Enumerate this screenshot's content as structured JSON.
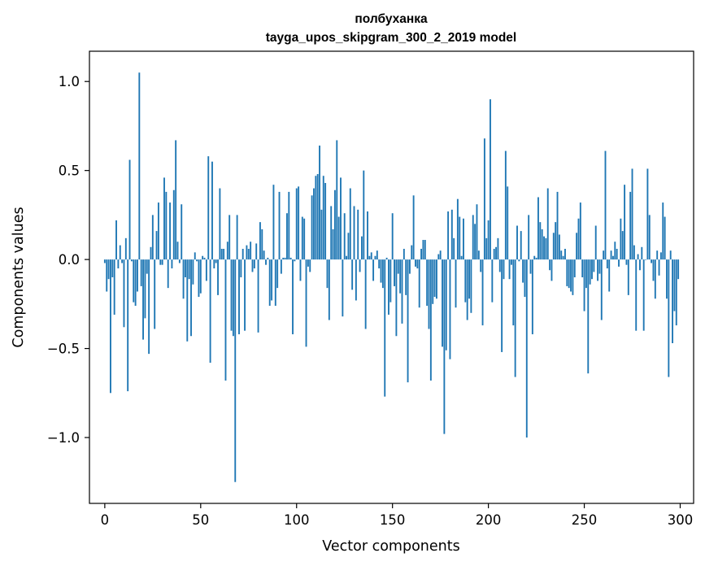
{
  "chart_data": {
    "type": "bar",
    "title": "полбуханка",
    "subtitle": "tayga_upos_skipgram_300_2_2019 model",
    "xlabel": "Vector components",
    "ylabel": "Components values",
    "xlim": [
      -8,
      307
    ],
    "ylim": [
      -1.37,
      1.17
    ],
    "xticks": [
      0,
      50,
      100,
      150,
      200,
      250,
      300
    ],
    "yticks": [
      -1.0,
      -0.5,
      0.0,
      0.5,
      1.0
    ],
    "ytick_labels": [
      "−1.0",
      "−0.5",
      "0.0",
      "0.5",
      "1.0"
    ],
    "bar_color": "#1f77b4",
    "grid": false,
    "legend": "none",
    "values": [
      -0.02,
      -0.18,
      -0.11,
      -0.75,
      -0.1,
      -0.31,
      0.22,
      -0.05,
      0.08,
      -0.02,
      -0.38,
      0.12,
      -0.74,
      0.56,
      -0.01,
      -0.24,
      -0.26,
      -0.18,
      1.05,
      -0.15,
      -0.45,
      -0.33,
      -0.08,
      -0.53,
      0.07,
      0.25,
      -0.39,
      0.16,
      0.32,
      -0.03,
      -0.03,
      0.46,
      0.38,
      -0.16,
      0.32,
      -0.05,
      0.39,
      0.67,
      0.1,
      -0.02,
      0.31,
      -0.22,
      -0.1,
      -0.46,
      -0.11,
      -0.43,
      -0.14,
      0.04,
      -0.01,
      -0.21,
      -0.19,
      0.02,
      0.01,
      -0.12,
      0.58,
      -0.58,
      0.55,
      -0.05,
      -0.02,
      -0.2,
      0.4,
      0.06,
      0.06,
      -0.68,
      0.1,
      0.25,
      -0.4,
      -0.43,
      -1.25,
      0.25,
      -0.42,
      -0.1,
      0.06,
      -0.4,
      0.08,
      0.06,
      0.1,
      -0.07,
      -0.05,
      0.09,
      -0.41,
      0.21,
      0.17,
      0.05,
      -0.03,
      0.01,
      -0.26,
      -0.23,
      0.42,
      -0.26,
      -0.16,
      0.38,
      -0.08,
      0.01,
      0.01,
      0.26,
      0.38,
      0.01,
      -0.42,
      -0.01,
      0.4,
      0.41,
      -0.12,
      0.24,
      0.23,
      -0.49,
      -0.04,
      -0.07,
      0.36,
      0.4,
      0.47,
      0.48,
      0.64,
      0.28,
      0.47,
      0.43,
      -0.16,
      -0.34,
      0.3,
      0.17,
      0.39,
      0.67,
      0.24,
      0.46,
      -0.32,
      0.26,
      0.02,
      0.15,
      0.4,
      -0.17,
      0.3,
      -0.23,
      0.28,
      -0.07,
      0.13,
      0.5,
      -0.39,
      0.27,
      0.02,
      0.04,
      -0.12,
      0.02,
      0.05,
      -0.05,
      -0.13,
      -0.16,
      -0.77,
      0.01,
      -0.31,
      -0.24,
      0.26,
      -0.15,
      -0.43,
      -0.08,
      -0.19,
      -0.36,
      0.06,
      -0.2,
      -0.69,
      -0.08,
      0.08,
      0.36,
      -0.04,
      -0.05,
      -0.27,
      0.06,
      0.11,
      0.11,
      -0.26,
      -0.39,
      -0.68,
      -0.25,
      -0.21,
      -0.22,
      0.03,
      0.05,
      -0.49,
      -0.98,
      -0.51,
      0.27,
      -0.56,
      0.28,
      0.12,
      -0.27,
      0.34,
      0.24,
      0.02,
      0.23,
      -0.24,
      -0.34,
      -0.22,
      -0.3,
      0.25,
      0.2,
      0.31,
      0.05,
      -0.07,
      -0.37,
      0.68,
      0.12,
      0.22,
      0.9,
      -0.24,
      0.06,
      0.07,
      0.12,
      -0.07,
      -0.52,
      -0.11,
      0.61,
      0.41,
      -0.11,
      -0.03,
      -0.37,
      -0.66,
      0.19,
      -0.01,
      0.16,
      -0.13,
      -0.21,
      -1.0,
      0.25,
      -0.08,
      -0.42,
      0.02,
      0.01,
      0.35,
      0.21,
      0.17,
      0.13,
      0.12,
      0.4,
      -0.06,
      -0.12,
      0.15,
      0.21,
      0.38,
      0.14,
      0.05,
      0.02,
      0.06,
      -0.15,
      -0.16,
      -0.18,
      -0.2,
      -0.1,
      0.15,
      0.23,
      0.32,
      -0.1,
      -0.29,
      -0.16,
      -0.64,
      -0.14,
      -0.11,
      -0.07,
      0.19,
      -0.12,
      -0.08,
      -0.34,
      0.05,
      0.61,
      -0.05,
      -0.18,
      0.05,
      0.02,
      0.1,
      0.06,
      -0.04,
      0.23,
      0.16,
      0.42,
      -0.03,
      -0.2,
      0.38,
      0.51,
      0.08,
      -0.4,
      0.03,
      -0.06,
      0.07,
      -0.4,
      0.0,
      0.51,
      0.25,
      -0.02,
      -0.12,
      -0.22,
      0.05,
      -0.09,
      0.04,
      0.32,
      0.24,
      -0.22,
      -0.66,
      0.05,
      -0.47,
      -0.29,
      -0.37,
      -0.11
    ]
  }
}
